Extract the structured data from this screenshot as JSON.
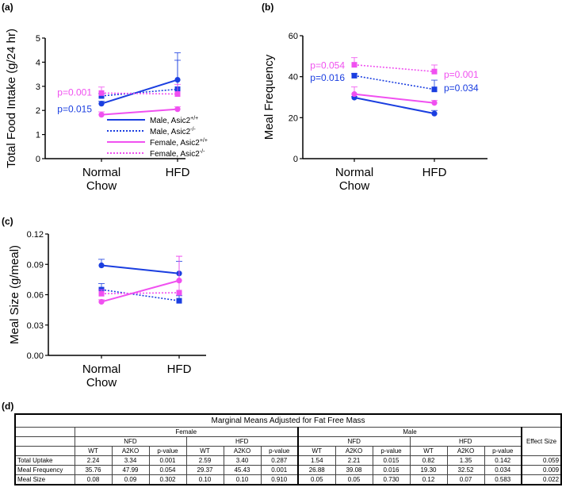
{
  "panel_labels": [
    "(a)",
    "(b)",
    "(c)",
    "(d)"
  ],
  "colors": {
    "male": "#1a3ee0",
    "female": "#f050f0"
  },
  "chart_data": [
    {
      "type": "line",
      "panel": "(a)",
      "ylabel": "Total Food Intake (g/24 hr)",
      "categories": [
        "Normal Chow",
        "HFD"
      ],
      "ylim": [
        0,
        5
      ],
      "yticks": [
        "0",
        "1",
        "2",
        "3",
        "4",
        "5"
      ],
      "series": [
        {
          "name": "Male, Asic2+/+",
          "color": "#1a3ee0",
          "dash": false,
          "marker": "circle",
          "values": [
            2.28,
            3.27
          ],
          "err": [
            0.1,
            1.12
          ]
        },
        {
          "name": "Male, Asic2-/-",
          "color": "#1a3ee0",
          "dash": true,
          "marker": "square",
          "values": [
            2.6,
            2.88
          ],
          "err": [
            0.1,
            1.2
          ]
        },
        {
          "name": "Female, Asic2+/+",
          "color": "#f050f0",
          "dash": false,
          "marker": "circle",
          "values": [
            1.82,
            2.05
          ],
          "err": [
            0.12,
            0.1
          ]
        },
        {
          "name": "Female, Asic2-/-",
          "color": "#f050f0",
          "dash": true,
          "marker": "square",
          "values": [
            2.72,
            2.68
          ],
          "err": [
            0.25,
            0.4
          ]
        }
      ],
      "legend": {
        "entries": [
          {
            "base": "Male, Asic2",
            "sup": "+/+"
          },
          {
            "base": "Male, Asic2",
            "sup": "-/-"
          },
          {
            "base": "Female, Asic2",
            "sup": "+/+"
          },
          {
            "base": "Female, Asic2",
            "sup": "-/-"
          }
        ]
      },
      "annotations": [
        {
          "text": "p=0.001",
          "color": "#f050f0",
          "cat": 0,
          "y": 2.75,
          "side": "left"
        },
        {
          "text": "p=0.015",
          "color": "#1a3ee0",
          "cat": 0,
          "y": 2.05,
          "side": "left"
        }
      ]
    },
    {
      "type": "line",
      "panel": "(b)",
      "ylabel": "Meal Frequency",
      "categories": [
        "Normal Chow",
        "HFD"
      ],
      "ylim": [
        0,
        60
      ],
      "yticks": [
        "0",
        "20",
        "40",
        "60"
      ],
      "series": [
        {
          "name": "Male, Asic2+/+",
          "color": "#1a3ee0",
          "dash": false,
          "marker": "circle",
          "values": [
            29.8,
            22
          ],
          "err": [
            0.5,
            1.5
          ]
        },
        {
          "name": "Male, Asic2-/-",
          "color": "#1a3ee0",
          "dash": true,
          "marker": "square",
          "values": [
            40.5,
            33.8
          ],
          "err": [
            1,
            4.5
          ]
        },
        {
          "name": "Female, Asic2+/+",
          "color": "#f050f0",
          "dash": false,
          "marker": "circle",
          "values": [
            31.5,
            27.2
          ],
          "err": [
            3.5,
            1.2
          ]
        },
        {
          "name": "Female, Asic2-/-",
          "color": "#f050f0",
          "dash": true,
          "marker": "square",
          "values": [
            45.8,
            42.5
          ],
          "err": [
            3.5,
            3.2
          ]
        }
      ],
      "annotations": [
        {
          "text": "p=0.054",
          "color": "#f050f0",
          "cat": 0,
          "y": 45.5,
          "side": "left"
        },
        {
          "text": "p=0.016",
          "color": "#1a3ee0",
          "cat": 0,
          "y": 39.5,
          "side": "left"
        },
        {
          "text": "p=0.001",
          "color": "#f050f0",
          "cat": 1,
          "y": 41,
          "side": "right"
        },
        {
          "text": "p=0.034",
          "color": "#1a3ee0",
          "cat": 1,
          "y": 34.5,
          "side": "right"
        }
      ]
    },
    {
      "type": "line",
      "panel": "(c)",
      "ylabel": "Meal Size (g/meal)",
      "categories": [
        "Normal Chow",
        "HFD"
      ],
      "ylim": [
        0,
        0.12
      ],
      "yticks": [
        "0.00",
        "0.03",
        "0.06",
        "0.09",
        "0.12"
      ],
      "series": [
        {
          "name": "Male, Asic2+/+",
          "color": "#1a3ee0",
          "dash": false,
          "marker": "circle",
          "values": [
            0.089,
            0.081
          ],
          "err": [
            0.006,
            0.012
          ]
        },
        {
          "name": "Male, Asic2-/-",
          "color": "#1a3ee0",
          "dash": true,
          "marker": "square",
          "values": [
            0.065,
            0.054
          ],
          "err": [
            0.006,
            0.005
          ]
        },
        {
          "name": "Female, Asic2+/+",
          "color": "#f050f0",
          "dash": false,
          "marker": "circle",
          "values": [
            0.053,
            0.074
          ],
          "err": [
            0.002,
            0.024
          ]
        },
        {
          "name": "Female, Asic2-/-",
          "color": "#f050f0",
          "dash": true,
          "marker": "square",
          "values": [
            0.061,
            0.062
          ],
          "err": [
            0.004,
            0.036
          ]
        }
      ],
      "annotations": []
    }
  ],
  "table": {
    "title": "Marginal Means Adjusted for Fat Free Mass",
    "sexes": [
      "Female",
      "Male"
    ],
    "diets": [
      "NFD",
      "HFD",
      "NFD",
      "HFD"
    ],
    "cols": [
      "WT",
      "A2KO",
      "p-value",
      "WT",
      "A2KO",
      "p-value",
      "WT",
      "A2KO",
      "p-value",
      "WT",
      "A2KO",
      "p-value"
    ],
    "effect_header": "Effect Size",
    "rows": [
      {
        "label": "Total Uptake",
        "values": [
          "2.24",
          "3.34",
          "0.001",
          "2.59",
          "3.40",
          "0.287",
          "1.54",
          "2.21",
          "0.015",
          "0.82",
          "1.35",
          "0.142"
        ],
        "effect": "0.059"
      },
      {
        "label": "Meal Frequency",
        "values": [
          "35.76",
          "47.99",
          "0.054",
          "29.37",
          "45.43",
          "0.001",
          "26.88",
          "39.08",
          "0.016",
          "19.30",
          "32.52",
          "0.034"
        ],
        "effect": "0.009"
      },
      {
        "label": "Meal Size",
        "values": [
          "0.08",
          "0.09",
          "0.302",
          "0.10",
          "0.10",
          "0.910",
          "0.05",
          "0.05",
          "0.730",
          "0.12",
          "0.07",
          "0.583"
        ],
        "effect": "0.022"
      }
    ]
  }
}
